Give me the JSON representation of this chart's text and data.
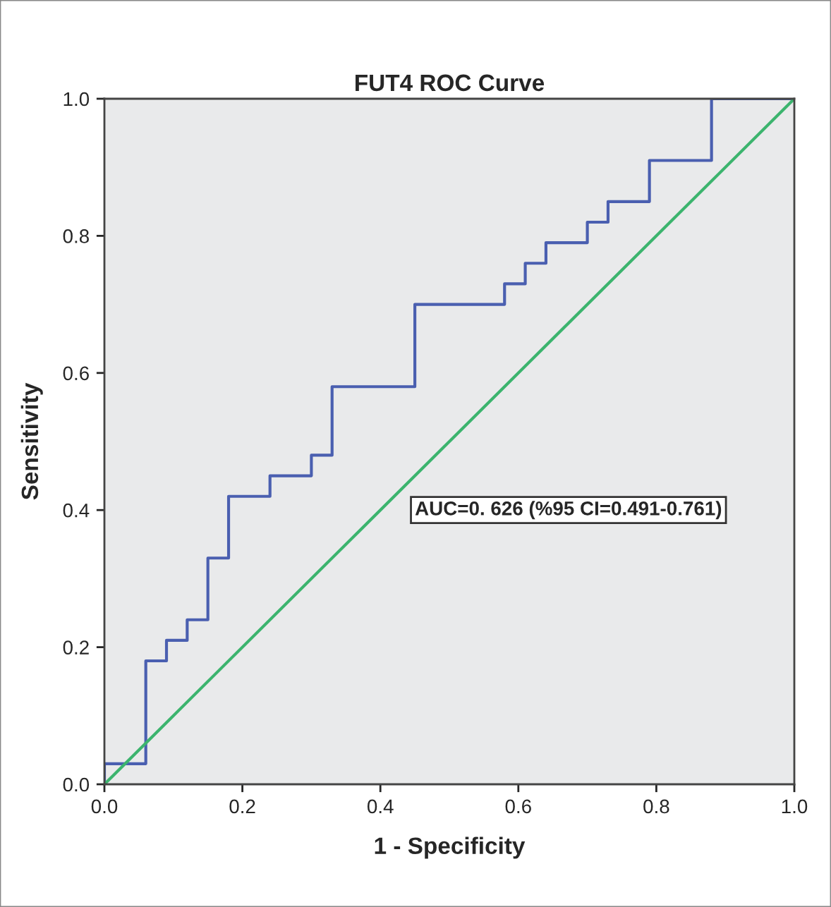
{
  "chart_data": {
    "type": "line",
    "title": "FUT4 ROC Curve",
    "xlabel": "1 - Specificity",
    "ylabel": "Sensitivity",
    "xlim": [
      0,
      1
    ],
    "ylim": [
      0,
      1
    ],
    "xticks": [
      {
        "value": 0,
        "label": "0.0"
      },
      {
        "value": 0.2,
        "label": "0.2"
      },
      {
        "value": 0.4,
        "label": "0.4"
      },
      {
        "value": 0.6,
        "label": "0.6"
      },
      {
        "value": 0.8,
        "label": "0.8"
      },
      {
        "value": 1,
        "label": "1.0"
      }
    ],
    "yticks": [
      {
        "value": 0,
        "label": "0.0"
      },
      {
        "value": 0.2,
        "label": "0.2"
      },
      {
        "value": 0.4,
        "label": "0.4"
      },
      {
        "value": 0.6,
        "label": "0.6"
      },
      {
        "value": 0.8,
        "label": "0.8"
      },
      {
        "value": 1,
        "label": "1.0"
      }
    ],
    "grid": false,
    "legend": false,
    "marker": "none",
    "series": [
      {
        "color": "#4a5fb0",
        "x": [
          0,
          0,
          0.06,
          0.06,
          0.09,
          0.09,
          0.12,
          0.12,
          0.15,
          0.15,
          0.18,
          0.18,
          0.24,
          0.24,
          0.3,
          0.3,
          0.33,
          0.33,
          0.45,
          0.45,
          0.58,
          0.58,
          0.61,
          0.61,
          0.64,
          0.64,
          0.7,
          0.7,
          0.73,
          0.73,
          0.79,
          0.79,
          0.88,
          0.88,
          1.0
        ],
        "values": [
          0,
          0.03,
          0.03,
          0.18,
          0.18,
          0.21,
          0.21,
          0.24,
          0.24,
          0.33,
          0.33,
          0.42,
          0.42,
          0.45,
          0.45,
          0.48,
          0.48,
          0.58,
          0.58,
          0.7,
          0.7,
          0.73,
          0.73,
          0.76,
          0.76,
          0.79,
          0.79,
          0.82,
          0.82,
          0.85,
          0.85,
          0.91,
          0.91,
          1.0,
          1.0
        ]
      },
      {
        "color": "#3cb46e",
        "x": [
          0,
          1
        ],
        "values": [
          0,
          1
        ]
      }
    ],
    "annotations": [
      "AUC=0. 626 (%95 CI=0.491-0.761)"
    ]
  }
}
